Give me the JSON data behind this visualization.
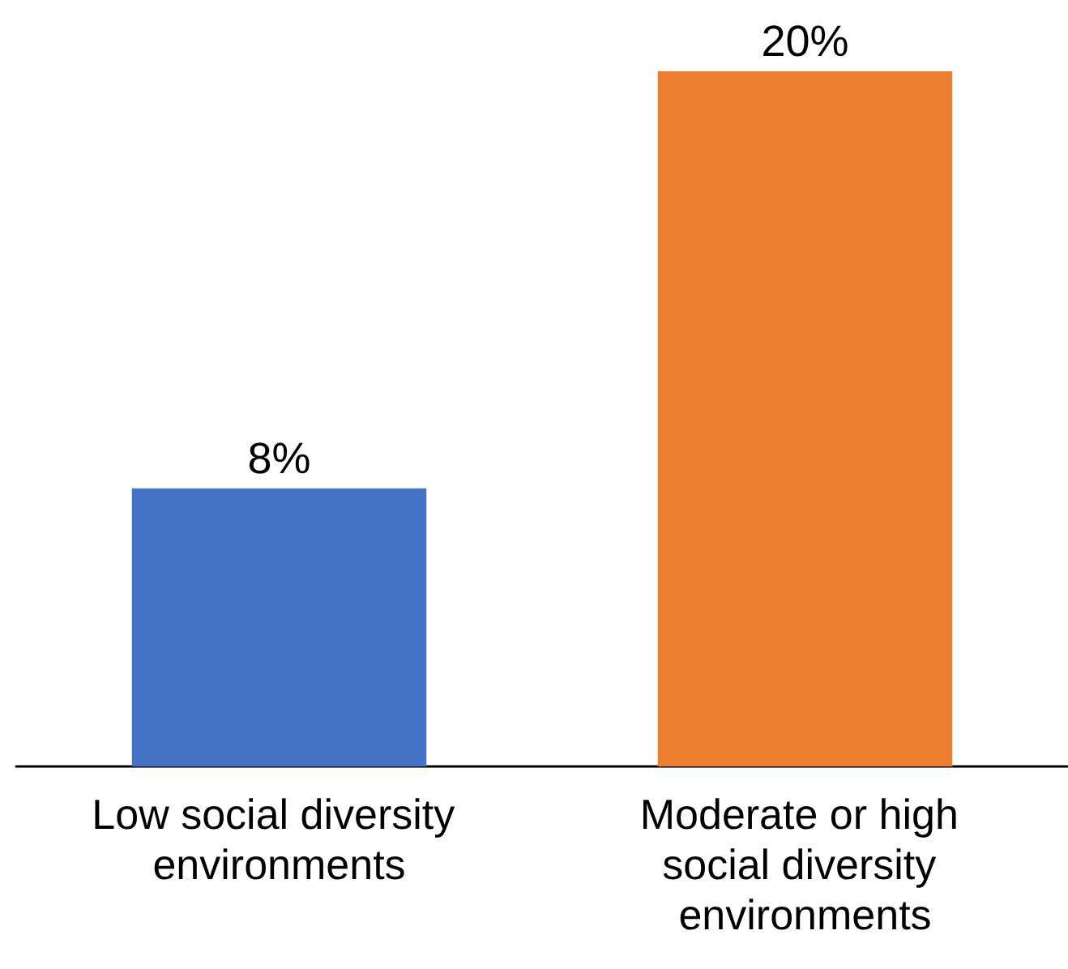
{
  "chart_data": {
    "type": "bar",
    "categories": [
      "Low social diversity environments",
      "Moderate or high social diversity environments"
    ],
    "values": [
      8,
      20
    ],
    "colors": [
      "#4472c4",
      "#ed7d31"
    ],
    "value_labels": [
      "8%",
      "20%"
    ]
  }
}
